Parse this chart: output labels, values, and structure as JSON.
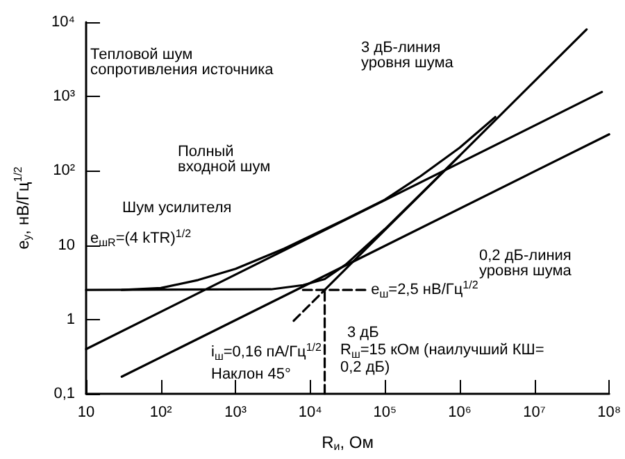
{
  "chart_data": {
    "type": "line",
    "xlabel": "R$_{и}$, Ом",
    "ylabel": "e$_{у}$, нВ/Гц$^{1/2}$",
    "log": "xy",
    "marker": "none",
    "line_style": "solid",
    "xlim": [
      10,
      100000000
    ],
    "ylim": [
      0.1,
      10000
    ],
    "xticks": [
      10,
      {
        "value": 100,
        "label": "10²"
      },
      {
        "value": 1000,
        "label": "10³"
      },
      {
        "value": 10000,
        "label": "10⁴"
      },
      {
        "value": 100000,
        "label": "10⁵"
      },
      {
        "value": 1000000,
        "label": "10⁶"
      },
      {
        "value": 10000000,
        "label": "10⁷"
      },
      {
        "value": 100000000,
        "label": "10⁸"
      }
    ],
    "yticks": [
      {
        "value": 0.1,
        "label": "0,1"
      },
      1,
      10,
      {
        "value": 100,
        "label": "10²"
      },
      {
        "value": 1000,
        "label": "10³"
      },
      {
        "value": 10000,
        "label": "10⁴"
      }
    ],
    "series": [
      {
        "color": "#000000",
        "x": [
          10,
          80000000
        ],
        "values": [
          0.4,
          1150
        ]
      },
      {
        "color": "#000000",
        "x": [
          30,
          100000000
        ],
        "values": [
          0.17,
          310
        ]
      },
      {
        "color": "#000000",
        "x": [
          10,
          3000,
          8000,
          15600,
          30000,
          100000,
          1000000
        ],
        "values": [
          2.5,
          2.55,
          2.9,
          3.5,
          5.5,
          16.5,
          160
        ]
      },
      {
        "color": "#000000",
        "x": [
          15600,
          50000000
        ],
        "values": [
          2.5,
          8000
        ]
      },
      {
        "color": "#000000",
        "line_style": "dashed",
        "x": [
          6000,
          15600
        ],
        "values": [
          0.96,
          2.5
        ]
      },
      {
        "color": "#000000",
        "line_style": "dashed",
        "x": [
          8000,
          60000
        ],
        "values": [
          2.5,
          2.5
        ]
      },
      {
        "color": "#000000",
        "line_style": "dashed",
        "x": [
          15600,
          15600
        ],
        "values": [
          0.1,
          2.5
        ]
      },
      {
        "color": "#000000",
        "x": [
          30,
          100,
          316,
          1000,
          4500,
          30000,
          100000,
          300000,
          1000000,
          3000000
        ],
        "values": [
          2.5,
          2.65,
          3.4,
          4.8,
          9.0,
          22.5,
          41,
          85,
          205,
          530
        ]
      }
    ],
    "annotations": [
      "Полный\nвходной шум",
      "Шум усилителя",
      "e$_{шR}$=(4 kTR)$^{1/2}$",
      "Тепловой шум\nсопротивления источника",
      "3 дБ-линия\nуровня шума",
      "0,2 дБ-линия\nуровня шума",
      {
        "text": "e$_{ш}$=2,5 нВ/Гц$^{1/2}$",
        "x": 65000,
        "y": 2.5
      },
      "3 дБ",
      "i$_{ш}$=0,16 пА/Гц$^{1/2}$",
      "Наклон 45°",
      "R$_{ш}$=15 кОм (наилучший КШ=\n0,2 дБ)"
    ]
  }
}
